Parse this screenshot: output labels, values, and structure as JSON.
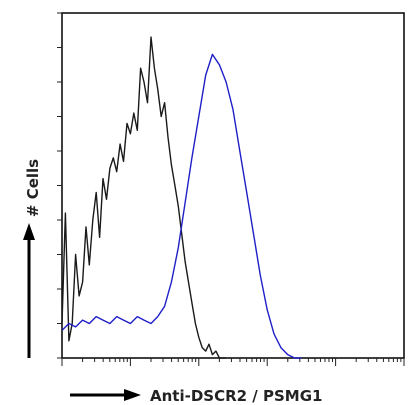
{
  "chart_data": {
    "type": "line",
    "title": "",
    "xlabel": "Anti-DSCR2 / PSMG1",
    "ylabel": "# Cells",
    "x_scale": "log",
    "xlim": [
      1,
      100000
    ],
    "ylim": [
      0,
      100
    ],
    "grid": false,
    "legend": "none",
    "series": [
      {
        "color": "#1a1a1a",
        "x": [
          1,
          1.12,
          1.26,
          1.41,
          1.58,
          1.78,
          2.0,
          2.24,
          2.51,
          2.82,
          3.16,
          3.55,
          3.98,
          4.47,
          5.01,
          5.62,
          6.31,
          7.08,
          7.94,
          8.91,
          10.0,
          11.2,
          12.6,
          14.1,
          15.8,
          17.8,
          20.0,
          22.4,
          25.1,
          28.2,
          31.6,
          35.5,
          39.8,
          44.7,
          50.1,
          56.2,
          63.1,
          70.8,
          79.4,
          89.1,
          100,
          112,
          126,
          141,
          158,
          178,
          200,
          251
        ],
        "values": [
          10,
          42,
          5,
          10,
          30,
          18,
          22,
          38,
          27,
          40,
          48,
          35,
          52,
          46,
          55,
          58,
          54,
          62,
          57,
          68,
          65,
          71,
          66,
          84,
          80,
          74,
          93,
          84,
          78,
          70,
          74,
          64,
          56,
          50,
          44,
          36,
          28,
          22,
          16,
          10,
          6,
          3,
          2,
          4,
          1,
          2,
          0,
          0
        ]
      },
      {
        "color": "#1f1fc8",
        "x": [
          1,
          1.26,
          1.58,
          2.0,
          2.51,
          3.16,
          3.98,
          5.01,
          6.31,
          7.94,
          10.0,
          12.6,
          15.8,
          20.0,
          25.1,
          31.6,
          39.8,
          50.1,
          63.1,
          79.4,
          100,
          126,
          158,
          200,
          251,
          316,
          398,
          501,
          631,
          794,
          1000,
          1259,
          1585,
          1995,
          2512,
          3162
        ],
        "values": [
          8,
          10,
          9,
          11,
          10,
          12,
          11,
          10,
          12,
          11,
          10,
          12,
          11,
          10,
          12,
          15,
          22,
          32,
          45,
          58,
          70,
          82,
          88,
          85,
          80,
          72,
          60,
          48,
          36,
          24,
          14,
          7,
          3,
          1,
          0,
          0
        ]
      }
    ]
  }
}
